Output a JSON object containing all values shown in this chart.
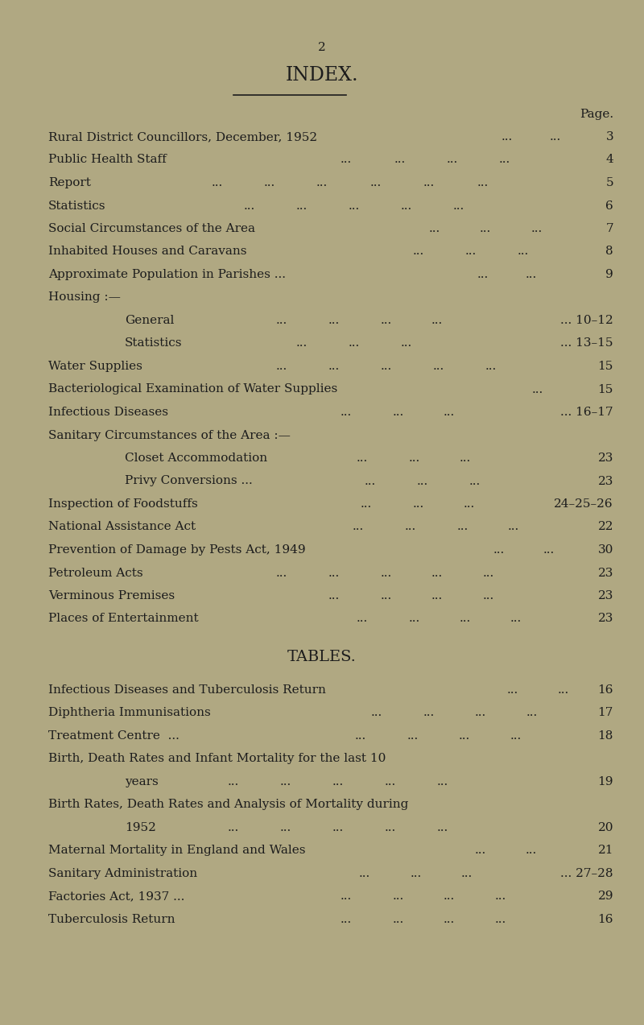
{
  "background_color": "#b0a882",
  "text_color": "#1c1c1c",
  "page_number": "2",
  "title": "INDEX.",
  "page_label": "Page.",
  "font_size": 11.0,
  "title_font_size": 17,
  "tables_title": "TABLES."
}
